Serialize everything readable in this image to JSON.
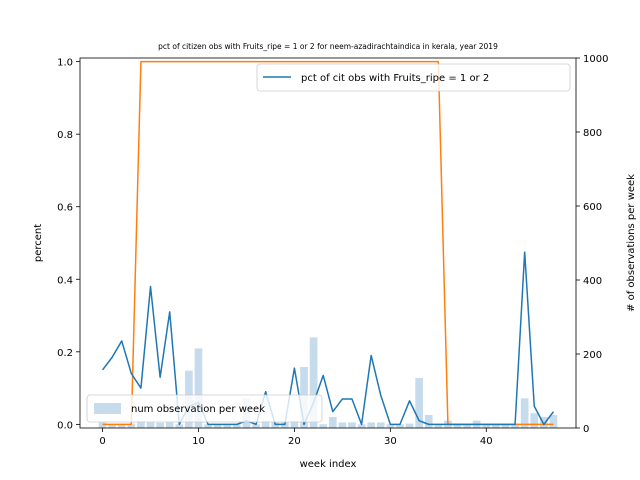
{
  "chart_data": {
    "type": "bar+line",
    "title": "pct of citizen obs with Fruits_ripe = 1 or 2 for neem-azadirachtaindica in kerala, year 2019",
    "xlabel": "week index",
    "ylabel": "percent",
    "ylabel_right": "# of observations per week",
    "xlim": [
      -2.35,
      49.35
    ],
    "ylim": [
      -0.01,
      1.01
    ],
    "ylim_right": [
      0,
      1000
    ],
    "xticks": [
      0,
      10,
      20,
      30,
      40
    ],
    "yticks": [
      0.0,
      0.2,
      0.4,
      0.6,
      0.8,
      1.0
    ],
    "yticks_right": [
      0,
      200,
      400,
      600,
      800,
      1000
    ],
    "colors": {
      "pct_line": "#1f77b4",
      "orange_line": "#ff7f0e",
      "bars": "#c6dbec"
    },
    "legend_upper": {
      "label": "pct of cit obs with Fruits_ripe = 1 or 2",
      "position": "upper-right"
    },
    "legend_lower": {
      "label": "num observation per week",
      "position": "lower-left"
    },
    "series_pct": {
      "x": [
        0,
        1,
        2,
        3,
        4,
        5,
        6,
        7,
        8,
        9,
        10,
        11,
        12,
        13,
        14,
        15,
        16,
        17,
        18,
        19,
        20,
        21,
        22,
        23,
        24,
        25,
        26,
        27,
        28,
        29,
        30,
        31,
        32,
        33,
        34,
        35,
        36,
        37,
        38,
        39,
        40,
        41,
        42,
        43,
        44,
        45,
        46,
        47
      ],
      "values": [
        0.15,
        0.185,
        0.23,
        0.14,
        0.1,
        0.38,
        0.13,
        0.31,
        0.0,
        0.05,
        0.06,
        0.0,
        0.0,
        0.0,
        0.0,
        0.01,
        0.0,
        0.09,
        0.0,
        0.0,
        0.155,
        0.0,
        0.06,
        0.135,
        0.035,
        0.07,
        0.07,
        0.0,
        0.19,
        0.08,
        0.0,
        0.0,
        0.065,
        0.01,
        0.0,
        0.0,
        0.0,
        0.0,
        0.0,
        0.0,
        0.0,
        0.0,
        0.0,
        0.0,
        0.475,
        0.05,
        0.0,
        0.035
      ]
    },
    "series_orange": {
      "x": [
        0,
        1,
        2,
        3,
        4,
        5,
        6,
        7,
        8,
        9,
        10,
        11,
        12,
        13,
        14,
        15,
        16,
        17,
        18,
        19,
        20,
        21,
        22,
        23,
        24,
        25,
        26,
        27,
        28,
        29,
        30,
        31,
        32,
        33,
        34,
        35,
        36,
        37,
        38,
        39,
        40,
        41,
        42,
        43,
        44,
        45,
        46,
        47
      ],
      "values": [
        0,
        0,
        0,
        0,
        1,
        1,
        1,
        1,
        1,
        1,
        1,
        1,
        1,
        1,
        1,
        1,
        1,
        1,
        1,
        1,
        1,
        1,
        1,
        1,
        1,
        1,
        1,
        1,
        1,
        1,
        1,
        1,
        1,
        1,
        1,
        1,
        0,
        0,
        0,
        0,
        0,
        0,
        0,
        0,
        0,
        0,
        0,
        0
      ]
    },
    "series_bars": {
      "x": [
        0,
        1,
        2,
        3,
        4,
        5,
        6,
        7,
        8,
        9,
        10,
        11,
        12,
        13,
        14,
        15,
        16,
        17,
        18,
        19,
        20,
        21,
        22,
        23,
        24,
        25,
        26,
        27,
        28,
        29,
        30,
        31,
        32,
        33,
        34,
        35,
        36,
        37,
        38,
        39,
        40,
        41,
        42,
        43,
        44,
        45,
        46,
        47
      ],
      "values": [
        15,
        10,
        8,
        12,
        20,
        15,
        14,
        15,
        10,
        155,
        215,
        10,
        10,
        10,
        10,
        80,
        10,
        20,
        15,
        15,
        20,
        165,
        245,
        10,
        30,
        15,
        15,
        10,
        15,
        15,
        10,
        10,
        12,
        135,
        35,
        8,
        20,
        12,
        10,
        20,
        12,
        10,
        8,
        8,
        80,
        40,
        30,
        35
      ]
    }
  }
}
